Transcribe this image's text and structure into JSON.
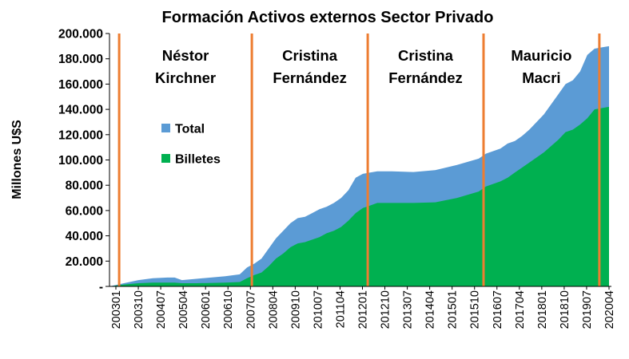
{
  "chart_data": {
    "type": "area",
    "title": "Formación  Activos externos Sector Privado",
    "ylabel": "Millones  U$S",
    "xlabel": "",
    "ylim": [
      0,
      200000
    ],
    "yticks": [
      {
        "value": 0,
        "label": "-"
      },
      {
        "value": 20000,
        "label": "20.000"
      },
      {
        "value": 40000,
        "label": "40.000"
      },
      {
        "value": 60000,
        "label": "60.000"
      },
      {
        "value": 80000,
        "label": "80.000"
      },
      {
        "value": 100000,
        "label": "100.000"
      },
      {
        "value": 120000,
        "label": "120.000"
      },
      {
        "value": 140000,
        "label": "140.000"
      },
      {
        "value": 160000,
        "label": "160.000"
      },
      {
        "value": 180000,
        "label": "180.000"
      },
      {
        "value": 200000,
        "label": "200.000"
      }
    ],
    "xticks": [
      "200301",
      "200310",
      "200407",
      "200504",
      "200601",
      "200610",
      "200707",
      "200804",
      "200910",
      "201007",
      "201104",
      "201201",
      "201210",
      "201307",
      "201404",
      "201501",
      "201510",
      "201607",
      "201704",
      "201801",
      "201810",
      "201907",
      "202004"
    ],
    "grid": false,
    "legend": "center-left",
    "series": [
      {
        "name": "Total",
        "color": "#5B9BD5",
        "points": [
          [
            "200301",
            0
          ],
          [
            "200307",
            2500
          ],
          [
            "200401",
            5000
          ],
          [
            "200407",
            6500
          ],
          [
            "200501",
            7000
          ],
          [
            "200504",
            7000
          ],
          [
            "200507",
            5000
          ],
          [
            "200601",
            6000
          ],
          [
            "200701",
            8000
          ],
          [
            "200707",
            9500
          ],
          [
            "200710",
            15000
          ],
          [
            "200801",
            18000
          ],
          [
            "200804",
            22000
          ],
          [
            "200807",
            30000
          ],
          [
            "200810",
            38000
          ],
          [
            "200901",
            44000
          ],
          [
            "200904",
            50000
          ],
          [
            "200907",
            54000
          ],
          [
            "200910",
            55000
          ],
          [
            "201001",
            58000
          ],
          [
            "201004",
            61000
          ],
          [
            "201007",
            63000
          ],
          [
            "201010",
            66000
          ],
          [
            "201101",
            70000
          ],
          [
            "201104",
            76000
          ],
          [
            "201107",
            86000
          ],
          [
            "201110",
            89000
          ],
          [
            "201201",
            90000
          ],
          [
            "201204",
            91000
          ],
          [
            "201210",
            91000
          ],
          [
            "201307",
            90500
          ],
          [
            "201404",
            92000
          ],
          [
            "201501",
            96000
          ],
          [
            "201510",
            101000
          ],
          [
            "201601",
            105000
          ],
          [
            "201607",
            109000
          ],
          [
            "201610",
            113000
          ],
          [
            "201701",
            115000
          ],
          [
            "201704",
            119000
          ],
          [
            "201707",
            124000
          ],
          [
            "201801",
            136000
          ],
          [
            "201807",
            152000
          ],
          [
            "201810",
            160000
          ],
          [
            "201901",
            163000
          ],
          [
            "201904",
            170000
          ],
          [
            "201907",
            183000
          ],
          [
            "201910",
            188000
          ],
          [
            "202001",
            189000
          ],
          [
            "202004",
            190000
          ]
        ]
      },
      {
        "name": "Billetes",
        "color": "#00B050",
        "points": [
          [
            "200301",
            0
          ],
          [
            "200307",
            1500
          ],
          [
            "200401",
            2500
          ],
          [
            "200407",
            3000
          ],
          [
            "200501",
            3000
          ],
          [
            "200504",
            3000
          ],
          [
            "200507",
            2500
          ],
          [
            "200601",
            2500
          ],
          [
            "200701",
            3000
          ],
          [
            "200707",
            3500
          ],
          [
            "200710",
            6500
          ],
          [
            "200801",
            9000
          ],
          [
            "200804",
            11000
          ],
          [
            "200807",
            16000
          ],
          [
            "200810",
            22000
          ],
          [
            "200901",
            26000
          ],
          [
            "200904",
            31000
          ],
          [
            "200907",
            34000
          ],
          [
            "200910",
            35000
          ],
          [
            "201001",
            37000
          ],
          [
            "201004",
            39000
          ],
          [
            "201007",
            42000
          ],
          [
            "201010",
            44000
          ],
          [
            "201101",
            47000
          ],
          [
            "201104",
            52000
          ],
          [
            "201107",
            58000
          ],
          [
            "201110",
            62000
          ],
          [
            "201201",
            64000
          ],
          [
            "201204",
            66000
          ],
          [
            "201210",
            66000
          ],
          [
            "201307",
            66000
          ],
          [
            "201404",
            66500
          ],
          [
            "201501",
            70000
          ],
          [
            "201510",
            75000
          ],
          [
            "201601",
            79000
          ],
          [
            "201607",
            83000
          ],
          [
            "201610",
            86000
          ],
          [
            "201701",
            90000
          ],
          [
            "201704",
            94000
          ],
          [
            "201707",
            98000
          ],
          [
            "201801",
            106000
          ],
          [
            "201807",
            116000
          ],
          [
            "201810",
            122000
          ],
          [
            "201901",
            124000
          ],
          [
            "201904",
            128000
          ],
          [
            "201907",
            133000
          ],
          [
            "201910",
            140000
          ],
          [
            "202001",
            141000
          ],
          [
            "202004",
            142000
          ]
        ]
      }
    ],
    "period_lines": {
      "color": "#ED7D31",
      "dates": [
        "200305",
        "201112",
        "200712",
        "201512",
        "201912"
      ]
    },
    "periods": [
      {
        "line1": "Néstor",
        "line2": "Kirchner",
        "from": "200305",
        "to": "200712"
      },
      {
        "line1": "Cristina",
        "line2": "Fernández",
        "from": "200712",
        "to": "201112"
      },
      {
        "line1": "Cristina",
        "line2": "Fernández",
        "from": "201112",
        "to": "201512"
      },
      {
        "line1": "Mauricio",
        "line2": "Macri",
        "from": "201512",
        "to": "201912"
      }
    ]
  }
}
